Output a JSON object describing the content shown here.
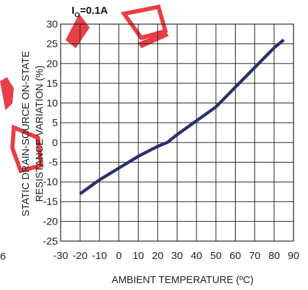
{
  "colors": {
    "line": "#2b2f6b",
    "grid": "#222222",
    "text": "#222222",
    "watermark": "#e8343c"
  },
  "stray_glyph": "6",
  "watermark": {
    "text": "250"
  },
  "chart_data": {
    "type": "line",
    "annotation": {
      "main": "I",
      "subscript": "O",
      "rest": "=0.1A"
    },
    "xlabel": "AMBIENT TEMPERATURE (ºC)",
    "ylabel": [
      "STATIC DRAIN-SOURCE ON-STATE",
      "RESISTANCE VARIATION (%)"
    ],
    "xlim": [
      -30,
      90
    ],
    "ylim": [
      -25,
      30
    ],
    "xticks": [
      -30,
      -20,
      -10,
      0,
      10,
      20,
      30,
      40,
      50,
      60,
      70,
      80,
      90
    ],
    "yticks": [
      30,
      25,
      20,
      15,
      10,
      5,
      0,
      -5,
      -10,
      -15,
      -20,
      -25
    ],
    "grid": true,
    "series": [
      {
        "x": [
          -20,
          -10,
          0,
          10,
          20,
          25,
          30,
          40,
          50,
          60,
          70,
          80,
          85
        ],
        "y": [
          -13,
          -9.5,
          -6.5,
          -3.5,
          -1,
          0,
          2,
          5.5,
          9,
          14,
          19,
          24,
          26
        ]
      }
    ]
  }
}
